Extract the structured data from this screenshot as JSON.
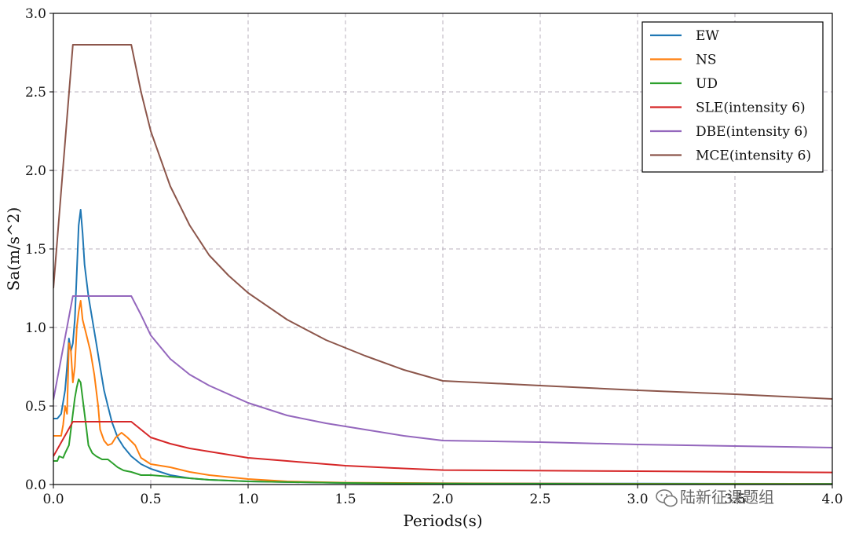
{
  "chart_data": {
    "type": "line",
    "title": "",
    "xlabel": "Periods(s)",
    "ylabel": "Sa(m/s^2)",
    "xlim": [
      0,
      4
    ],
    "ylim": [
      0,
      3
    ],
    "xticks": [
      0.0,
      0.5,
      1.0,
      1.5,
      2.0,
      2.5,
      3.0,
      3.5,
      4.0
    ],
    "yticks": [
      0.0,
      0.5,
      1.0,
      1.5,
      2.0,
      2.5,
      3.0
    ],
    "xtick_labels": [
      "0.0",
      "0.5",
      "1.0",
      "1.5",
      "2.0",
      "2.5",
      "3.0",
      "3.5",
      "4.0"
    ],
    "ytick_labels": [
      "0.0",
      "0.5",
      "1.0",
      "1.5",
      "2.0",
      "2.5",
      "3.0"
    ],
    "grid": true,
    "grid_style": "dashed",
    "legend_position": "top-right",
    "series": [
      {
        "name": "EW",
        "color": "#1f77b4",
        "points": [
          [
            0.0,
            0.42
          ],
          [
            0.02,
            0.42
          ],
          [
            0.04,
            0.45
          ],
          [
            0.06,
            0.6
          ],
          [
            0.07,
            0.75
          ],
          [
            0.08,
            0.93
          ],
          [
            0.09,
            0.85
          ],
          [
            0.1,
            0.9
          ],
          [
            0.11,
            1.05
          ],
          [
            0.12,
            1.35
          ],
          [
            0.13,
            1.65
          ],
          [
            0.14,
            1.75
          ],
          [
            0.15,
            1.6
          ],
          [
            0.16,
            1.4
          ],
          [
            0.18,
            1.2
          ],
          [
            0.2,
            1.05
          ],
          [
            0.22,
            0.9
          ],
          [
            0.24,
            0.75
          ],
          [
            0.26,
            0.6
          ],
          [
            0.28,
            0.5
          ],
          [
            0.3,
            0.4
          ],
          [
            0.33,
            0.3
          ],
          [
            0.36,
            0.24
          ],
          [
            0.4,
            0.18
          ],
          [
            0.45,
            0.13
          ],
          [
            0.5,
            0.1
          ],
          [
            0.6,
            0.06
          ],
          [
            0.7,
            0.04
          ],
          [
            0.8,
            0.03
          ],
          [
            1.0,
            0.02
          ],
          [
            1.5,
            0.01
          ],
          [
            2.0,
            0.008
          ],
          [
            3.0,
            0.006
          ],
          [
            4.0,
            0.005
          ]
        ]
      },
      {
        "name": "NS",
        "color": "#ff7f0e",
        "points": [
          [
            0.0,
            0.31
          ],
          [
            0.02,
            0.31
          ],
          [
            0.04,
            0.31
          ],
          [
            0.05,
            0.38
          ],
          [
            0.06,
            0.5
          ],
          [
            0.07,
            0.45
          ],
          [
            0.08,
            0.9
          ],
          [
            0.09,
            0.85
          ],
          [
            0.1,
            0.65
          ],
          [
            0.11,
            0.75
          ],
          [
            0.12,
            1.0
          ],
          [
            0.13,
            1.1
          ],
          [
            0.14,
            1.17
          ],
          [
            0.15,
            1.05
          ],
          [
            0.17,
            0.95
          ],
          [
            0.19,
            0.85
          ],
          [
            0.21,
            0.7
          ],
          [
            0.23,
            0.5
          ],
          [
            0.24,
            0.35
          ],
          [
            0.26,
            0.28
          ],
          [
            0.28,
            0.25
          ],
          [
            0.3,
            0.26
          ],
          [
            0.32,
            0.3
          ],
          [
            0.35,
            0.33
          ],
          [
            0.38,
            0.3
          ],
          [
            0.42,
            0.25
          ],
          [
            0.45,
            0.17
          ],
          [
            0.5,
            0.13
          ],
          [
            0.6,
            0.11
          ],
          [
            0.7,
            0.08
          ],
          [
            0.8,
            0.06
          ],
          [
            1.0,
            0.035
          ],
          [
            1.2,
            0.02
          ],
          [
            1.5,
            0.012
          ],
          [
            2.0,
            0.008
          ],
          [
            3.0,
            0.005
          ],
          [
            4.0,
            0.004
          ]
        ]
      },
      {
        "name": "UD",
        "color": "#2ca02c",
        "points": [
          [
            0.0,
            0.15
          ],
          [
            0.02,
            0.15
          ],
          [
            0.03,
            0.18
          ],
          [
            0.05,
            0.17
          ],
          [
            0.06,
            0.2
          ],
          [
            0.08,
            0.25
          ],
          [
            0.1,
            0.45
          ],
          [
            0.11,
            0.55
          ],
          [
            0.12,
            0.62
          ],
          [
            0.13,
            0.67
          ],
          [
            0.14,
            0.65
          ],
          [
            0.15,
            0.55
          ],
          [
            0.16,
            0.45
          ],
          [
            0.17,
            0.35
          ],
          [
            0.18,
            0.25
          ],
          [
            0.2,
            0.2
          ],
          [
            0.22,
            0.18
          ],
          [
            0.25,
            0.16
          ],
          [
            0.28,
            0.16
          ],
          [
            0.3,
            0.14
          ],
          [
            0.33,
            0.11
          ],
          [
            0.36,
            0.09
          ],
          [
            0.4,
            0.08
          ],
          [
            0.45,
            0.06
          ],
          [
            0.5,
            0.06
          ],
          [
            0.6,
            0.05
          ],
          [
            0.7,
            0.04
          ],
          [
            0.8,
            0.03
          ],
          [
            1.0,
            0.02
          ],
          [
            1.5,
            0.01
          ],
          [
            2.0,
            0.006
          ],
          [
            3.0,
            0.004
          ],
          [
            4.0,
            0.003
          ]
        ]
      },
      {
        "name": "SLE(intensity 6)",
        "color": "#d62728",
        "points": [
          [
            0.0,
            0.18
          ],
          [
            0.1,
            0.4
          ],
          [
            0.4,
            0.4
          ],
          [
            0.5,
            0.3
          ],
          [
            0.6,
            0.26
          ],
          [
            0.7,
            0.23
          ],
          [
            0.8,
            0.21
          ],
          [
            1.0,
            0.17
          ],
          [
            1.2,
            0.15
          ],
          [
            1.5,
            0.12
          ],
          [
            1.75,
            0.105
          ],
          [
            2.0,
            0.092
          ],
          [
            3.0,
            0.085
          ],
          [
            4.0,
            0.077
          ]
        ]
      },
      {
        "name": "DBE(intensity 6)",
        "color": "#9467bd",
        "points": [
          [
            0.0,
            0.54
          ],
          [
            0.1,
            1.2
          ],
          [
            0.4,
            1.2
          ],
          [
            0.45,
            1.08
          ],
          [
            0.5,
            0.95
          ],
          [
            0.6,
            0.8
          ],
          [
            0.7,
            0.7
          ],
          [
            0.8,
            0.63
          ],
          [
            1.0,
            0.52
          ],
          [
            1.2,
            0.44
          ],
          [
            1.4,
            0.39
          ],
          [
            1.6,
            0.35
          ],
          [
            1.8,
            0.31
          ],
          [
            2.0,
            0.28
          ],
          [
            2.5,
            0.27
          ],
          [
            3.0,
            0.255
          ],
          [
            3.5,
            0.245
          ],
          [
            4.0,
            0.235
          ]
        ]
      },
      {
        "name": "MCE(intensity 6)",
        "color": "#8c564b",
        "points": [
          [
            0.0,
            1.25
          ],
          [
            0.1,
            2.8
          ],
          [
            0.4,
            2.8
          ],
          [
            0.45,
            2.5
          ],
          [
            0.5,
            2.25
          ],
          [
            0.6,
            1.9
          ],
          [
            0.7,
            1.65
          ],
          [
            0.8,
            1.46
          ],
          [
            0.9,
            1.33
          ],
          [
            1.0,
            1.22
          ],
          [
            1.2,
            1.05
          ],
          [
            1.4,
            0.92
          ],
          [
            1.6,
            0.82
          ],
          [
            1.8,
            0.73
          ],
          [
            2.0,
            0.66
          ],
          [
            2.5,
            0.63
          ],
          [
            3.0,
            0.6
          ],
          [
            3.5,
            0.575
          ],
          [
            4.0,
            0.545
          ]
        ]
      }
    ]
  },
  "watermark": {
    "text": "陆新征课题组",
    "icon": "wechat-icon"
  }
}
